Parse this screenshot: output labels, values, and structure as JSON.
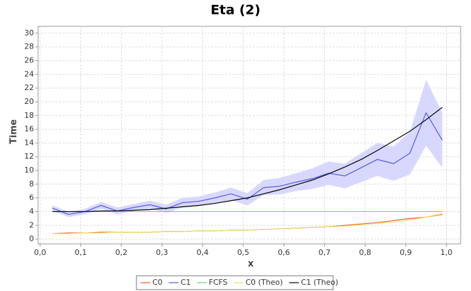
{
  "chart_data": {
    "type": "line",
    "title": "Eta (2)",
    "x_label": "x",
    "y_label": "Time",
    "x": [
      0.03,
      0.07,
      0.11,
      0.15,
      0.19,
      0.23,
      0.27,
      0.31,
      0.35,
      0.39,
      0.43,
      0.47,
      0.51,
      0.55,
      0.59,
      0.63,
      0.67,
      0.71,
      0.75,
      0.79,
      0.83,
      0.87,
      0.91,
      0.95,
      0.99
    ],
    "series": [
      {
        "name": "C0",
        "color": "#ff5533",
        "values": [
          0.8,
          0.9,
          0.9,
          1.0,
          1.0,
          1.0,
          1.0,
          1.1,
          1.1,
          1.2,
          1.2,
          1.3,
          1.3,
          1.4,
          1.5,
          1.6,
          1.7,
          1.8,
          2.0,
          2.2,
          2.4,
          2.7,
          3.0,
          3.2,
          3.6
        ]
      },
      {
        "name": "C1",
        "color": "#5555ee",
        "band_color": "#d8d8ff",
        "values": [
          4.5,
          3.6,
          4.0,
          4.9,
          4.1,
          4.6,
          5.0,
          4.4,
          5.3,
          5.5,
          6.0,
          6.6,
          5.8,
          7.5,
          7.7,
          8.3,
          8.8,
          9.6,
          9.2,
          10.4,
          11.6,
          11.0,
          12.5,
          18.4,
          14.4
        ],
        "lower": [
          4.1,
          3.2,
          3.6,
          4.4,
          3.6,
          4.1,
          4.4,
          3.8,
          4.6,
          4.8,
          5.2,
          5.7,
          4.9,
          6.4,
          6.5,
          7.0,
          7.3,
          7.9,
          7.4,
          8.3,
          9.2,
          8.5,
          9.4,
          13.6,
          10.4
        ],
        "upper": [
          4.9,
          4.0,
          4.4,
          5.4,
          4.6,
          5.1,
          5.6,
          5.0,
          6.0,
          6.2,
          6.8,
          7.5,
          6.7,
          8.6,
          8.9,
          9.6,
          10.3,
          11.3,
          11.0,
          12.5,
          14.0,
          13.5,
          15.6,
          23.2,
          18.4
        ]
      },
      {
        "name": "FCFS",
        "color": "#66dd66",
        "values": [
          4.0,
          4.0,
          4.0,
          4.0,
          4.0,
          4.0,
          4.0,
          4.0,
          4.0,
          4.0,
          4.0,
          4.0,
          4.0,
          4.0,
          4.0,
          4.0,
          4.0,
          4.0,
          4.0,
          4.0,
          4.0,
          4.0,
          4.0,
          4.0,
          4.0
        ]
      },
      {
        "name": "C0 (Theo)",
        "color": "#e8e066",
        "values": [
          0.8,
          0.8,
          0.9,
          0.9,
          1.0,
          1.0,
          1.0,
          1.1,
          1.1,
          1.2,
          1.2,
          1.3,
          1.3,
          1.4,
          1.5,
          1.6,
          1.7,
          1.8,
          1.9,
          2.1,
          2.3,
          2.5,
          2.8,
          3.2,
          3.7
        ]
      },
      {
        "name": "C1 (Theo)",
        "color": "#000000",
        "values": [
          4.0,
          4.0,
          4.0,
          4.1,
          4.1,
          4.2,
          4.3,
          4.5,
          4.7,
          4.9,
          5.2,
          5.6,
          6.0,
          6.6,
          7.2,
          7.9,
          8.6,
          9.5,
          10.5,
          11.6,
          12.9,
          14.3,
          15.7,
          17.4,
          19.2
        ]
      }
    ],
    "xlim": [
      -0.005,
      1.035
    ],
    "ylim": [
      -0.7,
      31
    ],
    "xticks": [
      {
        "value": 0,
        "label": "0,0"
      },
      {
        "value": 0.1,
        "label": "0,1"
      },
      {
        "value": 0.2,
        "label": "0,2"
      },
      {
        "value": 0.3,
        "label": "0,3"
      },
      {
        "value": 0.4,
        "label": "0,4"
      },
      {
        "value": 0.5,
        "label": "0,5"
      },
      {
        "value": 0.6,
        "label": "0,6"
      },
      {
        "value": 0.7,
        "label": "0,7"
      },
      {
        "value": 0.8,
        "label": "0,8"
      },
      {
        "value": 0.9,
        "label": "0,9"
      },
      {
        "value": 1,
        "label": "1,0"
      }
    ],
    "yticks": [
      0,
      2,
      4,
      6,
      8,
      10,
      12,
      14,
      16,
      18,
      20,
      22,
      24,
      26,
      28,
      30
    ],
    "grid": true
  }
}
